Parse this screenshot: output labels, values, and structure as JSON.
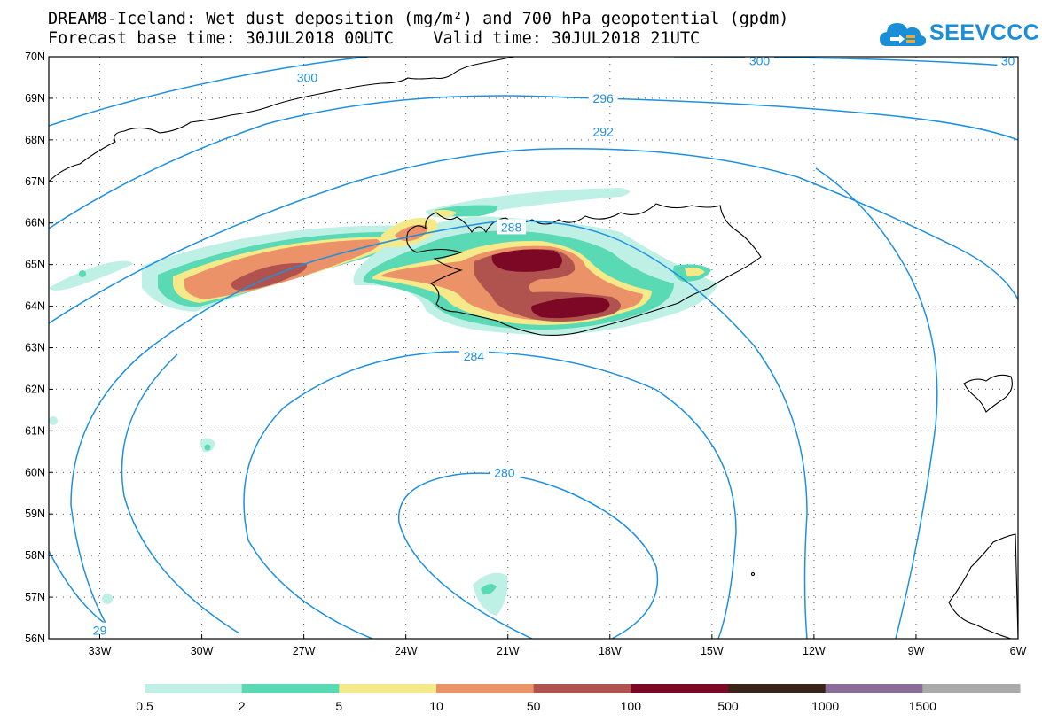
{
  "header": {
    "title_line1": "DREAM8-Iceland: Wet dust deposition (mg/m²) and 700 hPa geopotential (gpdm)",
    "title_line2": "Forecast base time: 30JUL2018 00UTC    Valid time: 30JUL2018 21UTC"
  },
  "logo": {
    "text": "SEEVCCC",
    "icon": "cloud-logo-icon",
    "color": "#1a8fd8"
  },
  "map": {
    "lon_range": [
      -34.5,
      -6
    ],
    "lat_range": [
      56,
      70
    ],
    "lat_labels": [
      "70N",
      "69N",
      "68N",
      "67N",
      "66N",
      "65N",
      "64N",
      "63N",
      "62N",
      "61N",
      "60N",
      "59N",
      "58N",
      "57N",
      "56N"
    ],
    "lon_labels": [
      "33W",
      "30W",
      "27W",
      "24W",
      "21W",
      "18W",
      "15W",
      "12W",
      "9W",
      "6W"
    ],
    "grid": true,
    "contour_color": "#1e90e0",
    "contour_labels": [
      {
        "text": "300",
        "lon": -26.9,
        "lat": 69.5
      },
      {
        "text": "300",
        "lon": -13.6,
        "lat": 69.9
      },
      {
        "text": "30",
        "lon": -6.3,
        "lat": 69.9
      },
      {
        "text": "296",
        "lon": -18.2,
        "lat": 69.0
      },
      {
        "text": "292",
        "lon": -18.2,
        "lat": 68.2
      },
      {
        "text": "288",
        "lon": -20.9,
        "lat": 65.9
      },
      {
        "text": "284",
        "lon": -22.0,
        "lat": 62.8
      },
      {
        "text": "280",
        "lon": -21.1,
        "lat": 60.0
      },
      {
        "text": "29",
        "lon": -33.0,
        "lat": 56.2
      }
    ]
  },
  "legend": {
    "items": [
      {
        "label": "0.5",
        "color": "#bff0e6"
      },
      {
        "label": "2",
        "color": "#5ad9b5"
      },
      {
        "label": "5",
        "color": "#f5e98a"
      },
      {
        "label": "10",
        "color": "#eb9268"
      },
      {
        "label": "50",
        "color": "#b0534f"
      },
      {
        "label": "100",
        "color": "#7d0826"
      },
      {
        "label": "500",
        "color": "#3a2418"
      },
      {
        "label": "1000",
        "color": "#8a6c9a"
      },
      {
        "label": "1500",
        "color": "#aaaaaa"
      }
    ]
  }
}
